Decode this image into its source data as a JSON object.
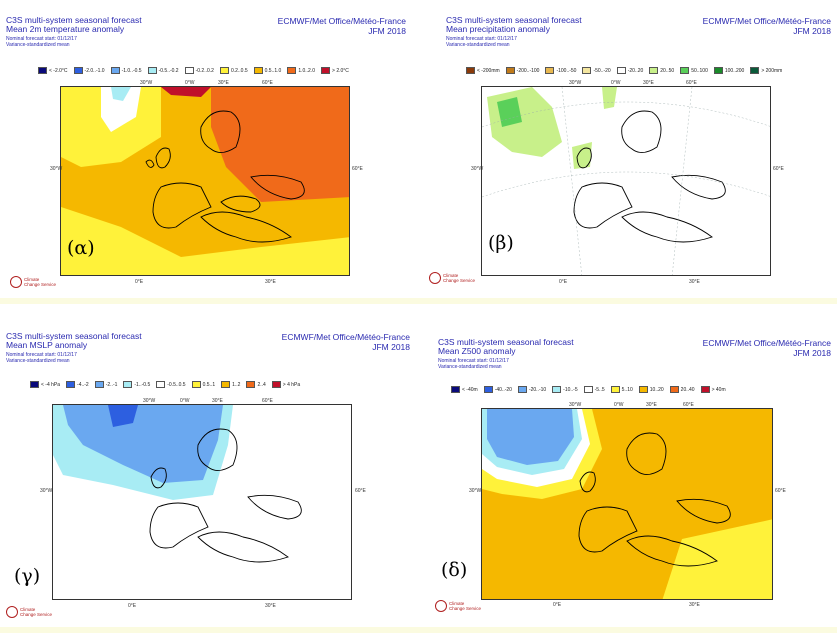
{
  "panels": [
    {
      "id": "a",
      "label": "(α)",
      "title": [
        "C3S multi-system seasonal forecast",
        "Mean 2m temperature anomaly"
      ],
      "sub": [
        "Nominal forecast start: 01/12/17",
        "Variance-standardized mean"
      ],
      "org": [
        "ECMWF/Met Office/Météo-France",
        "JFM 2018"
      ],
      "legend": [
        {
          "text": "< -2.0°C",
          "color": "#0a0a7a"
        },
        {
          "text": "-2.0..-1.0",
          "color": "#2d5fe0"
        },
        {
          "text": "-1.0..-0.5",
          "color": "#6aa8f0"
        },
        {
          "text": "-0.5..-0.2",
          "color": "#a8ecf4"
        },
        {
          "text": "-0.2..0.2",
          "color": "#ffffff"
        },
        {
          "text": "0.2..0.5",
          "color": "#fff23a"
        },
        {
          "text": "0.5..1.0",
          "color": "#f5b800"
        },
        {
          "text": "1.0..2.0",
          "color": "#f06a1a"
        },
        {
          "text": "> 2.0°C",
          "color": "#c0102a"
        }
      ],
      "ticks": [
        "30°W",
        "0°W",
        "30°E",
        "60°E",
        "30°W",
        "60°E",
        "0°E",
        "30°E"
      ]
    },
    {
      "id": "b",
      "label": "(β)",
      "title": [
        "C3S multi-system seasonal forecast",
        "Mean precipitation anomaly"
      ],
      "sub": [
        "Nominal forecast start: 01/12/17",
        "Variance-standardized mean"
      ],
      "org": [
        "ECMWF/Met Office/Météo-France",
        "JFM 2018"
      ],
      "legend": [
        {
          "text": "< -200mm",
          "color": "#8a3a0a"
        },
        {
          "text": "-200..-100",
          "color": "#c07a1a"
        },
        {
          "text": "-100..-50",
          "color": "#e8b850"
        },
        {
          "text": "-50..-20",
          "color": "#f4e6a0"
        },
        {
          "text": "-20..20",
          "color": "#ffffff"
        },
        {
          "text": "20..50",
          "color": "#c8f08a"
        },
        {
          "text": "50..100",
          "color": "#5ad05a"
        },
        {
          "text": "100..200",
          "color": "#1a8a2a"
        },
        {
          "text": "> 200mm",
          "color": "#0a5a3a"
        }
      ],
      "ticks": [
        "30°W",
        "0°W",
        "30°E",
        "60°E",
        "30°W",
        "60°E",
        "0°E",
        "30°E"
      ]
    },
    {
      "id": "c",
      "label": "(γ)",
      "title": [
        "C3S multi-system seasonal forecast",
        "Mean MSLP anomaly"
      ],
      "sub": [
        "Nominal forecast start: 01/12/17",
        "Variance-standardized mean"
      ],
      "org": [
        "ECMWF/Met Office/Météo-France",
        "JFM 2018"
      ],
      "legend": [
        {
          "text": "< -4 hPa",
          "color": "#0a0a7a"
        },
        {
          "text": "-4..-2",
          "color": "#2d5fe0"
        },
        {
          "text": "-2..-1",
          "color": "#6aa8f0"
        },
        {
          "text": "-1..-0.5",
          "color": "#a8ecf4"
        },
        {
          "text": "-0.5..0.5",
          "color": "#ffffff"
        },
        {
          "text": "0.5..1",
          "color": "#fff23a"
        },
        {
          "text": "1..2",
          "color": "#f5b800"
        },
        {
          "text": "2..4",
          "color": "#f06a1a"
        },
        {
          "text": "> 4 hPa",
          "color": "#c0102a"
        }
      ],
      "ticks": [
        "30°W",
        "0°W",
        "30°E",
        "60°E",
        "30°W",
        "60°E",
        "0°E",
        "30°E"
      ]
    },
    {
      "id": "d",
      "label": "(δ)",
      "title": [
        "C3S multi-system seasonal forecast",
        "Mean Z500 anomaly"
      ],
      "sub": [
        "Nominal forecast start: 01/12/17",
        "Variance-standardized mean"
      ],
      "org": [
        "ECMWF/Met Office/Météo-France",
        "JFM 2018"
      ],
      "legend": [
        {
          "text": "< -40m",
          "color": "#0a0a7a"
        },
        {
          "text": "-40..-20",
          "color": "#2d5fe0"
        },
        {
          "text": "-20..-10",
          "color": "#6aa8f0"
        },
        {
          "text": "-10..-5",
          "color": "#a8ecf4"
        },
        {
          "text": "-5..5",
          "color": "#ffffff"
        },
        {
          "text": "5..10",
          "color": "#fff23a"
        },
        {
          "text": "10..20",
          "color": "#f5b800"
        },
        {
          "text": "20..40",
          "color": "#f06a1a"
        },
        {
          "text": "> 40m",
          "color": "#c0102a"
        }
      ],
      "ticks": [
        "30°W",
        "0°W",
        "30°E",
        "60°E",
        "30°W",
        "60°E",
        "0°E",
        "30°E"
      ]
    }
  ],
  "logo_text": [
    "Climate",
    "Change Service"
  ]
}
